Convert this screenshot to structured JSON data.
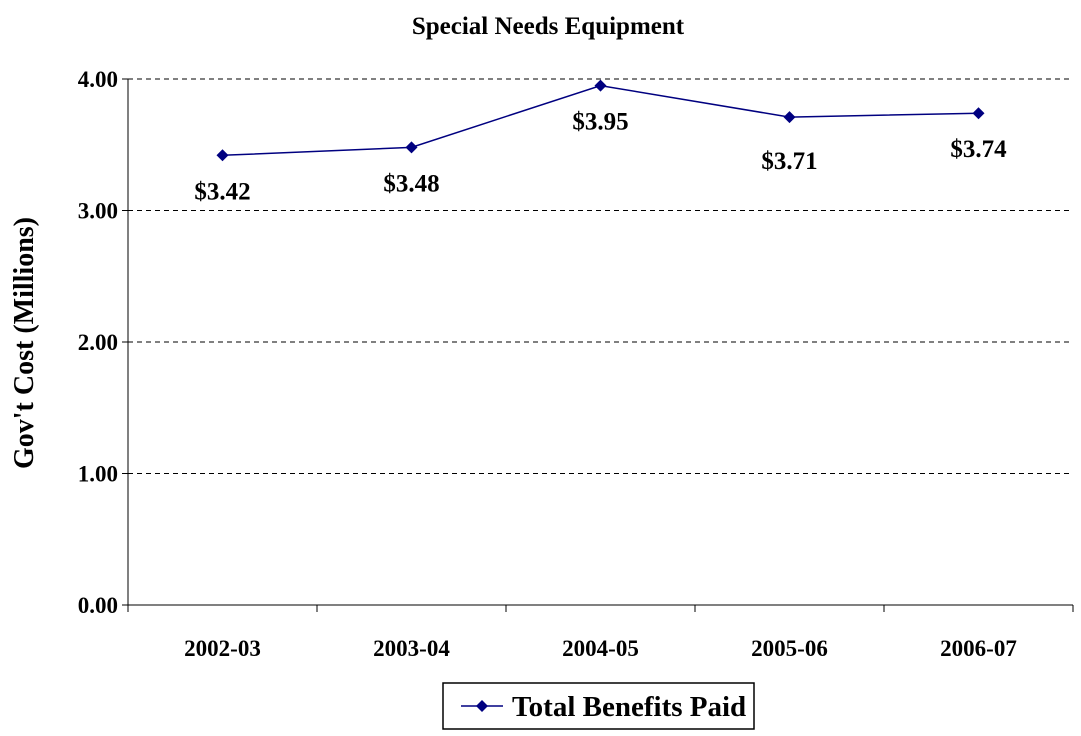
{
  "chart_data": {
    "type": "line",
    "title": "Special Needs Equipment",
    "xlabel": "",
    "ylabel": "Gov't Cost (Millions)",
    "categories": [
      "2002-03",
      "2003-04",
      "2004-05",
      "2005-06",
      "2006-07"
    ],
    "series": [
      {
        "name": "Total Benefits Paid",
        "values": [
          3.42,
          3.48,
          3.95,
          3.71,
          3.74
        ],
        "labels": [
          "$3.42",
          "$3.48",
          "$3.95",
          "$3.71",
          "$3.74"
        ],
        "color": "#000080"
      }
    ],
    "ylim": [
      0,
      4
    ],
    "yticks": [
      "0.00",
      "1.00",
      "2.00",
      "3.00",
      "4.00"
    ],
    "grid": "horizontal dashed",
    "legend": "bottom-center"
  }
}
